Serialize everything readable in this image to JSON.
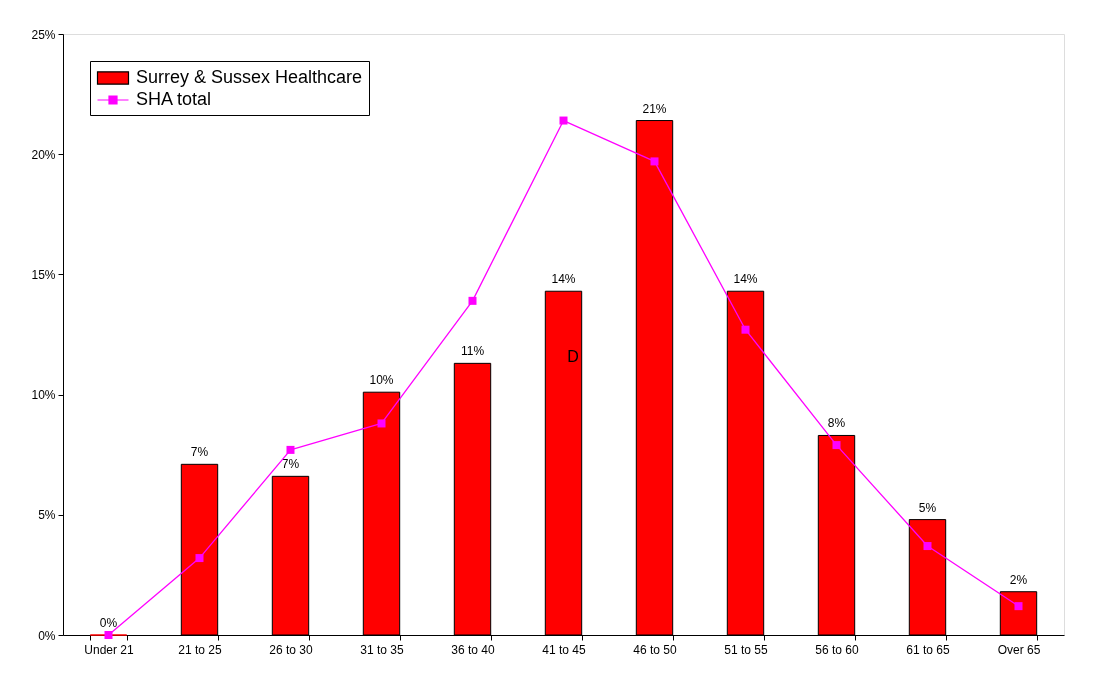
{
  "chart_data": {
    "type": "bar",
    "categories": [
      "Under 21",
      "21 to 25",
      "26 to 30",
      "31 to 35",
      "36 to 40",
      "41 to 45",
      "46 to 50",
      "51 to 55",
      "56 to 60",
      "61 to 65",
      "Over 65"
    ],
    "series": [
      {
        "name": "Surrey & Sussex Healthcare",
        "color": "#ff0000",
        "values": [
          0,
          7.1,
          6.6,
          10.1,
          11.3,
          14.3,
          21.4,
          14.3,
          8.3,
          4.8,
          1.8
        ],
        "value_labels": [
          "0%",
          "7%",
          "7%",
          "10%",
          "11%",
          "14%",
          "21%",
          "14%",
          "8%",
          "5%",
          "2%"
        ]
      },
      {
        "name": "SHA total",
        "type": "line",
        "color": "#ff00ff",
        "marker": "square",
        "values": [
          0,
          3.2,
          7.7,
          8.8,
          13.9,
          21.4,
          19.7,
          12.7,
          7.9,
          3.7,
          1.2
        ]
      }
    ],
    "ylim": [
      0,
      25
    ],
    "yticks": [
      {
        "value": 0,
        "label": "0%"
      },
      {
        "value": 5,
        "label": "5%"
      },
      {
        "value": 10,
        "label": "10%"
      },
      {
        "value": 15,
        "label": "15%"
      },
      {
        "value": 20,
        "label": "20%"
      },
      {
        "value": 25,
        "label": "25%"
      }
    ],
    "grid": false,
    "legend": "top left",
    "annotations": [
      "D"
    ]
  }
}
